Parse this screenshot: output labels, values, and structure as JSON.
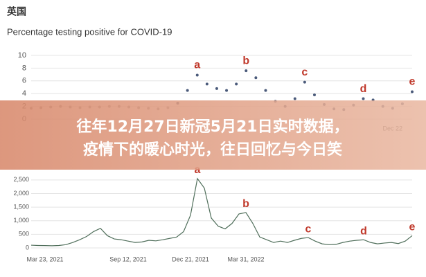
{
  "header": {
    "country": "英国"
  },
  "banner": {
    "lines": [
      "往年12月27日新冠5月21日实时数据，",
      "疫情下的暖心时光，往日回忆与今日笑"
    ]
  },
  "chart_data": [
    {
      "type": "dots",
      "title": "Percentage testing positive for COVID-19",
      "categories": [
        null,
        null,
        null,
        null,
        null,
        null,
        null,
        null,
        null,
        null,
        null,
        null,
        null,
        null,
        null,
        null,
        null,
        null,
        null,
        null,
        null,
        null,
        null,
        null,
        null,
        null,
        null,
        null,
        null,
        null,
        null,
        null,
        null,
        null,
        null,
        null,
        null,
        "Dec 22",
        null,
        null
      ],
      "series": [
        {
          "color": "#9a9a9a",
          "values": [
            1.7,
            1.8,
            1.9,
            2.0,
            1.9,
            1.8,
            1.9,
            1.9,
            2.0,
            2.0,
            1.9,
            1.8,
            1.7,
            1.6,
            1.8,
            2.5,
            null,
            null,
            null,
            null,
            null,
            null,
            null,
            null,
            null,
            null,
            null,
            null,
            null,
            null,
            null,
            null,
            null,
            null,
            null,
            null,
            null,
            null,
            null,
            null
          ]
        },
        {
          "color": "#4a5a7a",
          "values": [
            null,
            null,
            null,
            null,
            null,
            null,
            null,
            null,
            null,
            null,
            null,
            null,
            null,
            null,
            null,
            2.5,
            4.5,
            6.9,
            5.5,
            4.8,
            4.5,
            5.5,
            7.6,
            6.5,
            4.5,
            2.8,
            2.0,
            3.2,
            5.8,
            3.8,
            2.3,
            1.6,
            1.5,
            2.2,
            3.2,
            3.0,
            2.0,
            1.7,
            2.4,
            4.3
          ]
        }
      ],
      "ylim": [
        0,
        10
      ],
      "yticks": [
        0,
        2,
        4,
        6,
        8,
        10
      ],
      "grid": true,
      "annotations": [
        "a",
        "b",
        "c",
        "d",
        "e"
      ],
      "annotation_color": "#c0392b"
    },
    {
      "type": "line",
      "categories": [
        null,
        null,
        "Mar 23, 2021",
        null,
        null,
        null,
        null,
        null,
        null,
        null,
        null,
        null,
        null,
        null,
        "Sep 12, 2021",
        null,
        null,
        null,
        null,
        null,
        null,
        null,
        null,
        "Dec 21, 2021",
        null,
        null,
        null,
        null,
        null,
        null,
        null,
        "Mar 31, 2022",
        null,
        null,
        null,
        null,
        null,
        null,
        null,
        null,
        null,
        null,
        null,
        null,
        null,
        null,
        null,
        null,
        null,
        null,
        null,
        null,
        null,
        null,
        null,
        null
      ],
      "series": [
        {
          "color": "#4f6e5a",
          "values": [
            100,
            90,
            85,
            80,
            90,
            120,
            200,
            300,
            420,
            600,
            720,
            450,
            330,
            300,
            250,
            200,
            220,
            280,
            260,
            300,
            350,
            400,
            600,
            1200,
            2550,
            2200,
            1100,
            800,
            700,
            900,
            1250,
            1300,
            900,
            400,
            300,
            200,
            250,
            200,
            280,
            350,
            380,
            250,
            150,
            120,
            130,
            200,
            250,
            280,
            300,
            200,
            150,
            180,
            200,
            160,
            250,
            450
          ]
        }
      ],
      "ylim": [
        0,
        2750
      ],
      "yticks": [
        0,
        500,
        {
          "value": 1000,
          "label": "1,000"
        },
        {
          "value": 1500,
          "label": "1,500"
        },
        {
          "value": 2000,
          "label": "2,000"
        },
        {
          "value": 2500,
          "label": "2,500"
        }
      ],
      "grid": true,
      "annotations": [
        "a",
        "b",
        "c",
        "d",
        "e"
      ],
      "annotation_color": "#c0392b"
    }
  ]
}
